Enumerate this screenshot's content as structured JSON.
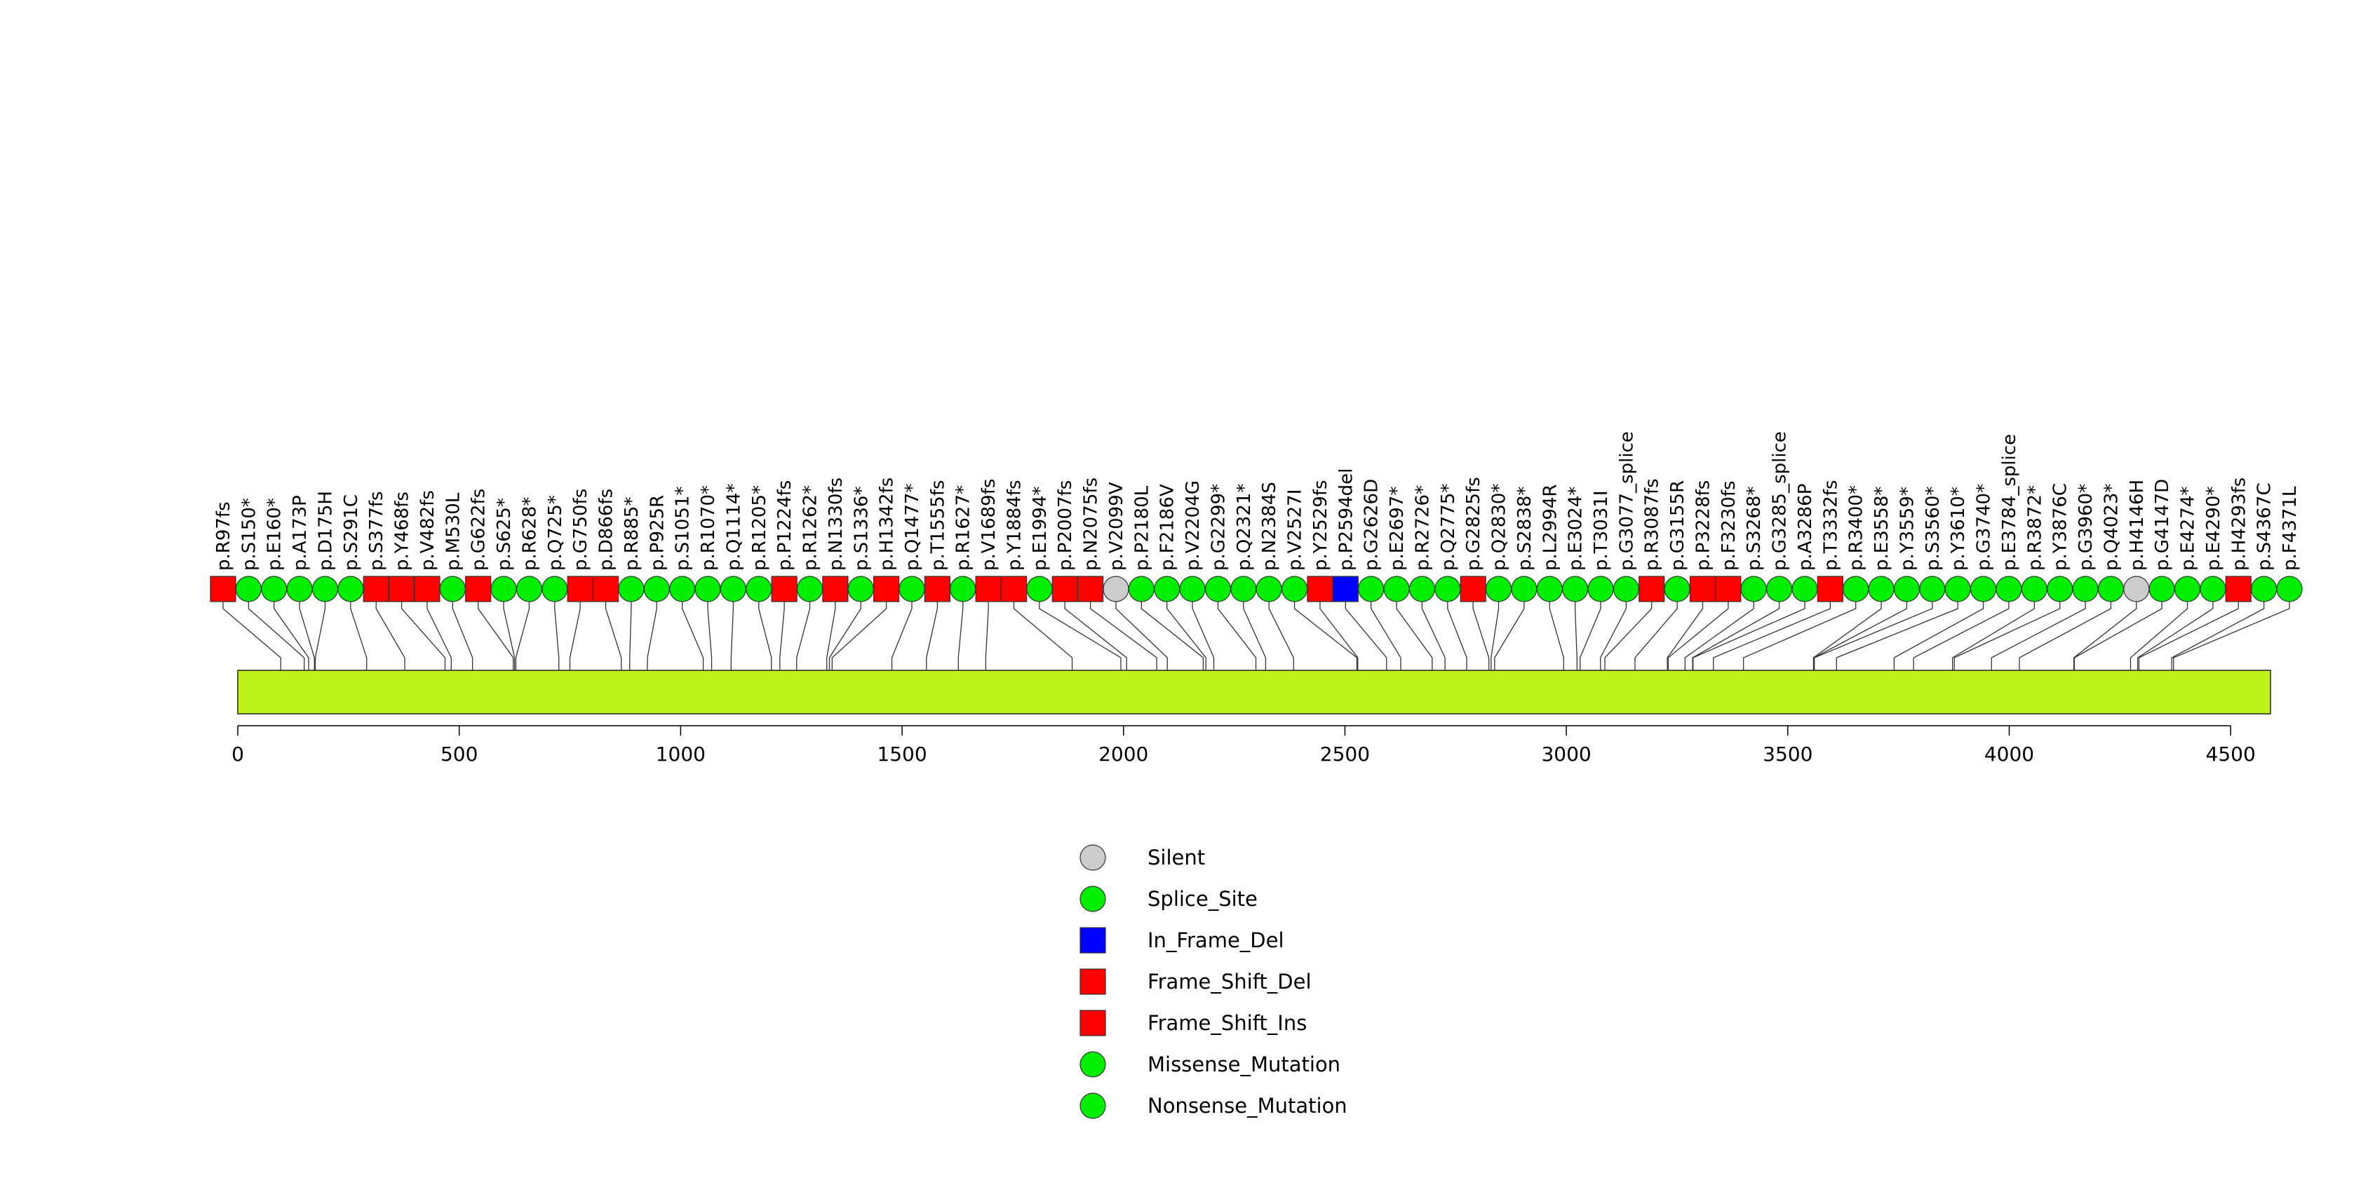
{
  "chart_data": {
    "type": "lollipop",
    "title": "",
    "xlabel": "",
    "ylabel": "",
    "protein_length": 4590,
    "xlim": [
      0,
      4590
    ],
    "xticks": [
      0,
      500,
      1000,
      1500,
      2000,
      2500,
      3000,
      3500,
      4000,
      4500
    ],
    "xtick_labels": [
      "0",
      "500",
      "1000",
      "1500",
      "2000",
      "2500",
      "3000",
      "3500",
      "4000",
      "4500"
    ],
    "protein_bar_color": "#bff21a",
    "legend": [
      {
        "label": "Silent",
        "shape": "circle",
        "color": "#cccccc"
      },
      {
        "label": "Splice_Site",
        "shape": "circle",
        "color": "#00ee00"
      },
      {
        "label": "In_Frame_Del",
        "shape": "square",
        "color": "#0000ff"
      },
      {
        "label": "Frame_Shift_Del",
        "shape": "square",
        "color": "#ff0000"
      },
      {
        "label": "Frame_Shift_Ins",
        "shape": "square",
        "color": "#ff0000"
      },
      {
        "label": "Missense_Mutation",
        "shape": "circle",
        "color": "#00ee00"
      },
      {
        "label": "Nonsense_Mutation",
        "shape": "circle",
        "color": "#00ee00"
      }
    ],
    "mutations": [
      {
        "label": "p.R97fs",
        "position": 97,
        "type": "Frame_Shift"
      },
      {
        "label": "p.S150*",
        "position": 150,
        "type": "Nonsense_Mutation"
      },
      {
        "label": "p.E160*",
        "position": 160,
        "type": "Nonsense_Mutation"
      },
      {
        "label": "p.A173P",
        "position": 173,
        "type": "Missense_Mutation"
      },
      {
        "label": "p.D175H",
        "position": 175,
        "type": "Missense_Mutation"
      },
      {
        "label": "p.S291C",
        "position": 291,
        "type": "Missense_Mutation"
      },
      {
        "label": "p.S377fs",
        "position": 377,
        "type": "Frame_Shift"
      },
      {
        "label": "p.Y468fs",
        "position": 468,
        "type": "Frame_Shift"
      },
      {
        "label": "p.V482fs",
        "position": 482,
        "type": "Frame_Shift"
      },
      {
        "label": "p.M530L",
        "position": 530,
        "type": "Missense_Mutation"
      },
      {
        "label": "p.G622fs",
        "position": 622,
        "type": "Frame_Shift"
      },
      {
        "label": "p.S625*",
        "position": 625,
        "type": "Nonsense_Mutation"
      },
      {
        "label": "p.R628*",
        "position": 628,
        "type": "Nonsense_Mutation"
      },
      {
        "label": "p.Q725*",
        "position": 725,
        "type": "Nonsense_Mutation"
      },
      {
        "label": "p.G750fs",
        "position": 750,
        "type": "Frame_Shift"
      },
      {
        "label": "p.D866fs",
        "position": 866,
        "type": "Frame_Shift"
      },
      {
        "label": "p.R885*",
        "position": 885,
        "type": "Nonsense_Mutation"
      },
      {
        "label": "p.P925R",
        "position": 925,
        "type": "Missense_Mutation"
      },
      {
        "label": "p.S1051*",
        "position": 1051,
        "type": "Nonsense_Mutation"
      },
      {
        "label": "p.R1070*",
        "position": 1070,
        "type": "Nonsense_Mutation"
      },
      {
        "label": "p.Q1114*",
        "position": 1114,
        "type": "Nonsense_Mutation"
      },
      {
        "label": "p.R1205*",
        "position": 1205,
        "type": "Nonsense_Mutation"
      },
      {
        "label": "p.P1224fs",
        "position": 1224,
        "type": "Frame_Shift"
      },
      {
        "label": "p.R1262*",
        "position": 1262,
        "type": "Nonsense_Mutation"
      },
      {
        "label": "p.N1330fs",
        "position": 1330,
        "type": "Frame_Shift"
      },
      {
        "label": "p.S1336*",
        "position": 1336,
        "type": "Nonsense_Mutation"
      },
      {
        "label": "p.H1342fs",
        "position": 1342,
        "type": "Frame_Shift"
      },
      {
        "label": "p.Q1477*",
        "position": 1477,
        "type": "Nonsense_Mutation"
      },
      {
        "label": "p.T1555fs",
        "position": 1555,
        "type": "Frame_Shift"
      },
      {
        "label": "p.R1627*",
        "position": 1627,
        "type": "Nonsense_Mutation"
      },
      {
        "label": "p.V1689fs",
        "position": 1689,
        "type": "Frame_Shift"
      },
      {
        "label": "p.Y1884fs",
        "position": 1884,
        "type": "Frame_Shift"
      },
      {
        "label": "p.E1994*",
        "position": 1994,
        "type": "Nonsense_Mutation"
      },
      {
        "label": "p.P2007fs",
        "position": 2007,
        "type": "Frame_Shift"
      },
      {
        "label": "p.N2075fs",
        "position": 2075,
        "type": "Frame_Shift"
      },
      {
        "label": "p.V2099V",
        "position": 2099,
        "type": "Silent"
      },
      {
        "label": "p.P2180L",
        "position": 2180,
        "type": "Missense_Mutation"
      },
      {
        "label": "p.F2186V",
        "position": 2186,
        "type": "Missense_Mutation"
      },
      {
        "label": "p.V2204G",
        "position": 2204,
        "type": "Missense_Mutation"
      },
      {
        "label": "p.G2299*",
        "position": 2299,
        "type": "Nonsense_Mutation"
      },
      {
        "label": "p.Q2321*",
        "position": 2321,
        "type": "Nonsense_Mutation"
      },
      {
        "label": "p.N2384S",
        "position": 2384,
        "type": "Missense_Mutation"
      },
      {
        "label": "p.V2527I",
        "position": 2527,
        "type": "Missense_Mutation"
      },
      {
        "label": "p.Y2529fs",
        "position": 2529,
        "type": "Frame_Shift"
      },
      {
        "label": "p.P2594del",
        "position": 2594,
        "type": "In_Frame_Del"
      },
      {
        "label": "p.G2626D",
        "position": 2626,
        "type": "Missense_Mutation"
      },
      {
        "label": "p.E2697*",
        "position": 2697,
        "type": "Nonsense_Mutation"
      },
      {
        "label": "p.R2726*",
        "position": 2726,
        "type": "Nonsense_Mutation"
      },
      {
        "label": "p.Q2775*",
        "position": 2775,
        "type": "Nonsense_Mutation"
      },
      {
        "label": "p.G2825fs",
        "position": 2825,
        "type": "Frame_Shift"
      },
      {
        "label": "p.Q2830*",
        "position": 2830,
        "type": "Nonsense_Mutation"
      },
      {
        "label": "p.S2838*",
        "position": 2838,
        "type": "Nonsense_Mutation"
      },
      {
        "label": "p.L2994R",
        "position": 2994,
        "type": "Missense_Mutation"
      },
      {
        "label": "p.E3024*",
        "position": 3024,
        "type": "Nonsense_Mutation"
      },
      {
        "label": "p.T3031I",
        "position": 3031,
        "type": "Missense_Mutation"
      },
      {
        "label": "p.G3077_splice",
        "position": 3077,
        "type": "Splice_Site"
      },
      {
        "label": "p.R3087fs",
        "position": 3087,
        "type": "Frame_Shift"
      },
      {
        "label": "p.G3155R",
        "position": 3155,
        "type": "Missense_Mutation"
      },
      {
        "label": "p.P3228fs",
        "position": 3228,
        "type": "Frame_Shift"
      },
      {
        "label": "p.F3230fs",
        "position": 3230,
        "type": "Frame_Shift"
      },
      {
        "label": "p.S3268*",
        "position": 3268,
        "type": "Nonsense_Mutation"
      },
      {
        "label": "p.G3285_splice",
        "position": 3285,
        "type": "Splice_Site"
      },
      {
        "label": "p.A3286P",
        "position": 3286,
        "type": "Missense_Mutation"
      },
      {
        "label": "p.T3332fs",
        "position": 3332,
        "type": "Frame_Shift"
      },
      {
        "label": "p.R3400*",
        "position": 3400,
        "type": "Nonsense_Mutation"
      },
      {
        "label": "p.E3558*",
        "position": 3558,
        "type": "Nonsense_Mutation"
      },
      {
        "label": "p.Y3559*",
        "position": 3559,
        "type": "Nonsense_Mutation"
      },
      {
        "label": "p.S3560*",
        "position": 3560,
        "type": "Nonsense_Mutation"
      },
      {
        "label": "p.Y3610*",
        "position": 3610,
        "type": "Nonsense_Mutation"
      },
      {
        "label": "p.G3740*",
        "position": 3740,
        "type": "Nonsense_Mutation"
      },
      {
        "label": "p.E3784_splice",
        "position": 3784,
        "type": "Splice_Site"
      },
      {
        "label": "p.R3872*",
        "position": 3872,
        "type": "Nonsense_Mutation"
      },
      {
        "label": "p.Y3876C",
        "position": 3876,
        "type": "Missense_Mutation"
      },
      {
        "label": "p.G3960*",
        "position": 3960,
        "type": "Nonsense_Mutation"
      },
      {
        "label": "p.Q4023*",
        "position": 4023,
        "type": "Nonsense_Mutation"
      },
      {
        "label": "p.H4146H",
        "position": 4146,
        "type": "Silent"
      },
      {
        "label": "p.G4147D",
        "position": 4147,
        "type": "Missense_Mutation"
      },
      {
        "label": "p.E4274*",
        "position": 4274,
        "type": "Nonsense_Mutation"
      },
      {
        "label": "p.E4290*",
        "position": 4290,
        "type": "Nonsense_Mutation"
      },
      {
        "label": "p.H4293fs",
        "position": 4293,
        "type": "Frame_Shift"
      },
      {
        "label": "p.S4367C",
        "position": 4367,
        "type": "Missense_Mutation"
      },
      {
        "label": "p.F4371L",
        "position": 4371,
        "type": "Missense_Mutation"
      }
    ]
  }
}
